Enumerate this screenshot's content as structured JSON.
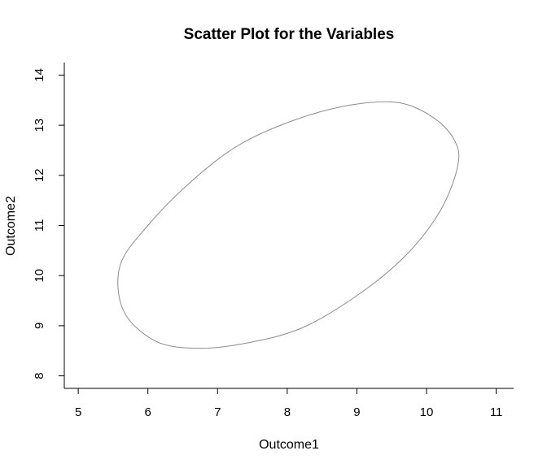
{
  "chart_data": {
    "type": "scatter",
    "title": "Scatter Plot for the Variables",
    "xlabel": "Outcome1",
    "ylabel": "Outcome2",
    "xlim": [
      4.8,
      11.25
    ],
    "ylim": [
      7.75,
      14.25
    ],
    "x_ticks": [
      5,
      6,
      7,
      8,
      9,
      10,
      11
    ],
    "y_ticks": [
      8,
      9,
      10,
      11,
      12,
      13,
      14
    ],
    "grid": false,
    "legend": "none",
    "colors": {
      "ellipse": "#8c8c8c",
      "axes": "#000000"
    },
    "ellipse": {
      "center": [
        8.0,
        11.0
      ],
      "x": [
        10.45,
        10.2,
        9.7,
        9.0,
        8.2,
        7.4,
        6.7,
        6.1,
        5.65,
        5.6,
        6.0,
        6.6,
        7.3,
        8.1,
        8.9,
        9.6,
        10.1,
        10.4,
        10.45
      ],
      "y": [
        12.2,
        11.3,
        10.4,
        9.6,
        8.95,
        8.65,
        8.55,
        8.7,
        9.3,
        10.2,
        11.0,
        11.85,
        12.6,
        13.1,
        13.4,
        13.45,
        13.15,
        12.7,
        12.2
      ]
    }
  }
}
